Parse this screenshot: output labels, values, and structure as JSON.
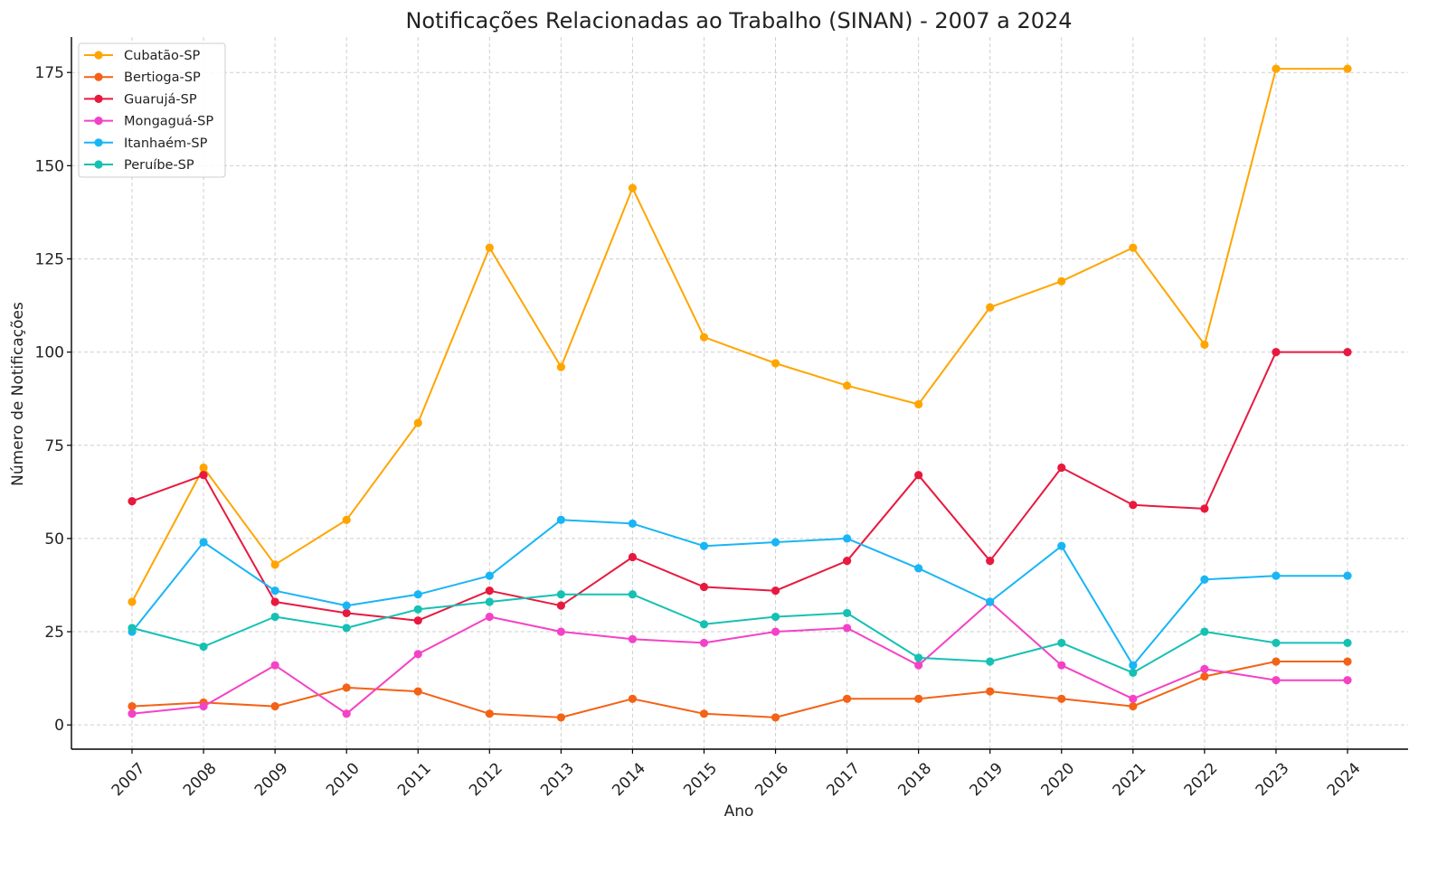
{
  "chart_data": {
    "type": "line",
    "title": "Notificações Relacionadas ao Trabalho (SINAN) - 2007 a 2024",
    "xlabel": "Ano",
    "ylabel": "Número de Notificações",
    "x": [
      "2007",
      "2008",
      "2009",
      "2010",
      "2011",
      "2012",
      "2013",
      "2014",
      "2015",
      "2016",
      "2017",
      "2018",
      "2019",
      "2020",
      "2021",
      "2022",
      "2023",
      "2024"
    ],
    "ylim": [
      -6.5,
      184.5
    ],
    "yticks": [
      0,
      25,
      50,
      75,
      100,
      125,
      150,
      175
    ],
    "grid": true,
    "legend_position": "top-left",
    "series": [
      {
        "name": "Cubatão-SP",
        "color": "#FFA500",
        "values": [
          33,
          69,
          43,
          55,
          81,
          128,
          96,
          144,
          104,
          97,
          91,
          86,
          112,
          119,
          128,
          102,
          176,
          176
        ]
      },
      {
        "name": "Bertioga-SP",
        "color": "#F46216",
        "values": [
          5,
          6,
          5,
          10,
          9,
          3,
          2,
          7,
          3,
          2,
          7,
          7,
          9,
          7,
          5,
          13,
          17,
          17
        ]
      },
      {
        "name": "Guarujá-SP",
        "color": "#E8193F",
        "values": [
          60,
          67,
          33,
          30,
          28,
          36,
          32,
          45,
          37,
          36,
          44,
          67,
          44,
          69,
          59,
          58,
          100,
          100
        ]
      },
      {
        "name": "Mongaguá-SP",
        "color": "#F442C6",
        "values": [
          3,
          5,
          16,
          3,
          19,
          29,
          25,
          23,
          22,
          25,
          26,
          16,
          33,
          16,
          7,
          15,
          12,
          12
        ]
      },
      {
        "name": "Itanhaém-SP",
        "color": "#19B5F5",
        "values": [
          25,
          49,
          36,
          32,
          35,
          40,
          55,
          54,
          48,
          49,
          50,
          42,
          33,
          48,
          16,
          39,
          40,
          40
        ]
      },
      {
        "name": "Peruíbe-SP",
        "color": "#15C1B3",
        "values": [
          26,
          21,
          29,
          26,
          31,
          33,
          35,
          35,
          27,
          29,
          30,
          18,
          17,
          22,
          14,
          25,
          22,
          22
        ]
      }
    ]
  }
}
